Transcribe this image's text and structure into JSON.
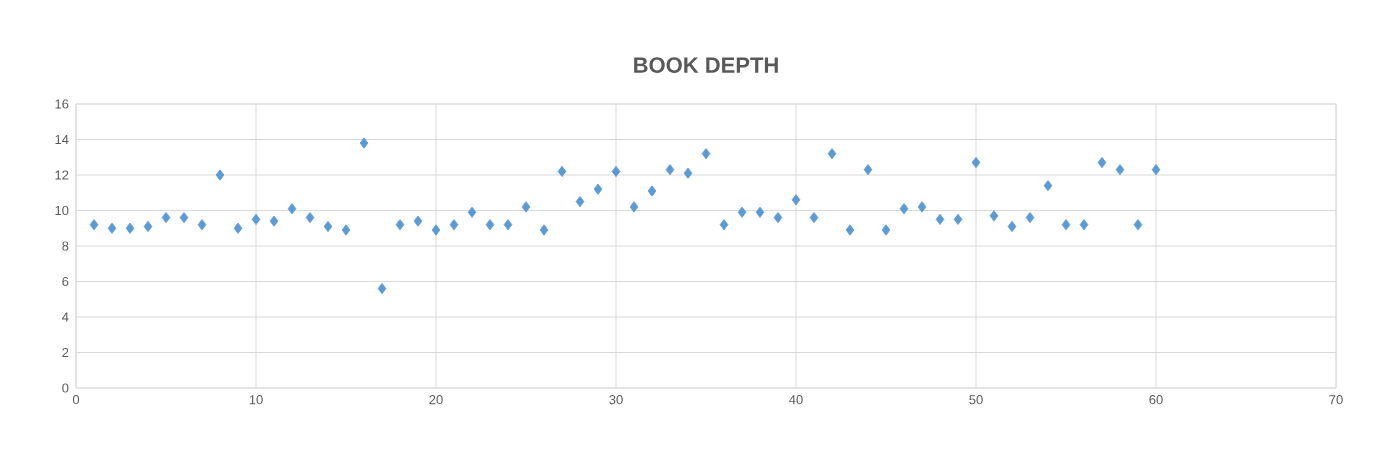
{
  "chart_data": {
    "type": "scatter",
    "title": "BOOK DEPTH",
    "marker": "diamond",
    "grid": true,
    "color": "#5b9bd5",
    "x": [
      1,
      2,
      3,
      4,
      5,
      6,
      7,
      8,
      9,
      10,
      11,
      12,
      13,
      14,
      15,
      16,
      17,
      18,
      19,
      20,
      21,
      22,
      23,
      24,
      25,
      26,
      27,
      28,
      29,
      30,
      31,
      32,
      33,
      34,
      35,
      36,
      37,
      38,
      39,
      40,
      41,
      42,
      43,
      44,
      45,
      46,
      47,
      48,
      49,
      50,
      51,
      52,
      53,
      54,
      55,
      56,
      57,
      58,
      59,
      60
    ],
    "values": [
      9.2,
      9.0,
      9.0,
      9.1,
      9.6,
      9.6,
      9.2,
      12.0,
      9.0,
      9.5,
      9.4,
      10.1,
      9.6,
      9.1,
      8.9,
      13.8,
      5.6,
      9.2,
      9.4,
      8.9,
      9.2,
      9.9,
      9.2,
      9.2,
      10.2,
      8.9,
      12.2,
      10.5,
      11.2,
      12.2,
      10.2,
      11.1,
      12.3,
      12.1,
      13.2,
      9.2,
      9.9,
      9.9,
      9.6,
      10.6,
      9.6,
      13.2,
      8.9,
      12.3,
      8.9,
      10.1,
      10.2,
      9.5,
      9.5,
      12.7,
      9.7,
      9.1,
      9.6,
      11.4,
      9.2,
      9.2,
      12.7,
      12.3,
      9.2,
      12.3
    ],
    "xlim": [
      0,
      70
    ],
    "xticks": [
      0,
      10,
      20,
      30,
      40,
      50,
      60,
      70
    ],
    "ylim": [
      0,
      16
    ],
    "yticks": [
      0,
      2,
      4,
      6,
      8,
      10,
      12,
      14,
      16
    ]
  }
}
